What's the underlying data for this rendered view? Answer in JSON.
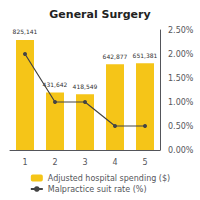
{
  "chart_data": {
    "type": "bar",
    "title": "General Surgery",
    "categories": [
      "1",
      "2",
      "3",
      "4",
      "5"
    ],
    "series": [
      {
        "name": "Adjusted hospital spending ($)",
        "type": "bar",
        "color": "#F5C518",
        "values": [
          825141,
          431642,
          418549,
          642877,
          651381
        ],
        "value_labels": [
          "825,141",
          "431,642",
          "418,549",
          "642,877",
          "651,381"
        ],
        "data_labels": true
      },
      {
        "name": "Malpractice suit rate (%)",
        "type": "line",
        "color": "#444444",
        "marker": "circle",
        "axis": "y2",
        "values": [
          2.0,
          1.0,
          1.0,
          0.5,
          0.5
        ]
      }
    ],
    "ylim": [
      0,
      900000
    ],
    "yticks": [],
    "y2lim": [
      0,
      2.5
    ],
    "y2ticks": [
      {
        "value": 0.0,
        "label": "0.00%"
      },
      {
        "value": 0.5,
        "label": "0.50%"
      },
      {
        "value": 1.0,
        "label": "1.00%"
      },
      {
        "value": 1.5,
        "label": "1.50%"
      },
      {
        "value": 2.0,
        "label": "2.00%"
      },
      {
        "value": 2.5,
        "label": "2.50%"
      }
    ],
    "grid": false,
    "legend": "bottom"
  }
}
